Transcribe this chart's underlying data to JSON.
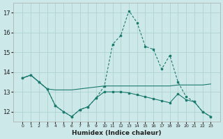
{
  "xlabel": "Humidex (Indice chaleur)",
  "x_values": [
    0,
    1,
    2,
    3,
    4,
    5,
    6,
    7,
    8,
    9,
    10,
    11,
    12,
    13,
    14,
    15,
    16,
    17,
    18,
    19,
    20,
    21,
    22,
    23
  ],
  "line1_y": [
    13.7,
    13.85,
    13.5,
    13.15,
    13.1,
    13.1,
    13.1,
    13.15,
    13.2,
    13.25,
    13.3,
    13.3,
    13.3,
    13.3,
    13.3,
    13.3,
    13.3,
    13.3,
    13.3,
    13.35,
    13.35,
    13.35,
    13.35,
    13.4
  ],
  "line2_y": [
    13.7,
    13.85,
    13.5,
    13.15,
    12.3,
    12.0,
    11.75,
    12.1,
    12.25,
    12.7,
    13.3,
    15.4,
    15.85,
    17.1,
    16.5,
    15.3,
    15.15,
    14.15,
    14.85,
    13.5,
    12.75,
    12.5,
    12.0,
    11.75
  ],
  "line3_y": [
    13.7,
    13.85,
    13.5,
    13.15,
    12.3,
    12.0,
    11.75,
    12.1,
    12.25,
    12.7,
    13.0,
    13.0,
    13.0,
    12.95,
    12.85,
    12.75,
    12.65,
    12.55,
    12.45,
    12.9,
    12.6,
    12.5,
    12.0,
    11.75
  ],
  "color": "#1a7a6e",
  "bg_color": "#cde8e8",
  "grid_color": "#aacece",
  "ylim": [
    11.5,
    17.5
  ],
  "yticks": [
    12,
    13,
    14,
    15,
    16,
    17
  ],
  "xticks": [
    0,
    1,
    2,
    3,
    4,
    5,
    6,
    7,
    8,
    9,
    10,
    11,
    12,
    13,
    14,
    15,
    16,
    17,
    18,
    19,
    20,
    21,
    22,
    23
  ]
}
